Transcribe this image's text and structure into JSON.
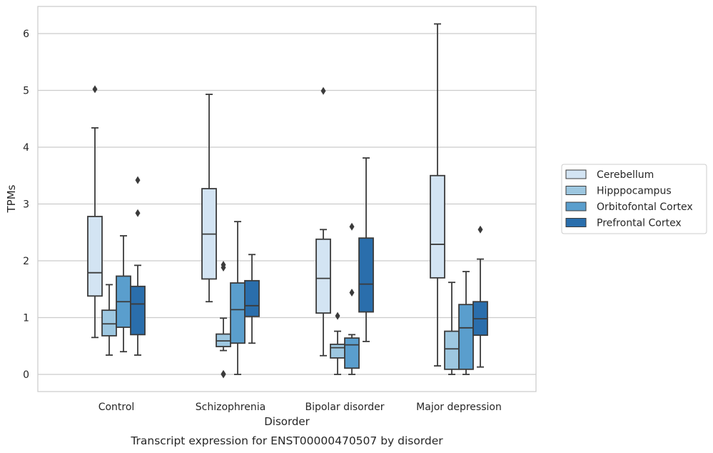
{
  "chart_data": {
    "type": "boxplot",
    "title": "",
    "caption": "Transcript expression for ENST00000470507 by disorder",
    "xlabel": "Disorder",
    "ylabel": "TPMs",
    "ylim": [
      -0.3,
      6.5
    ],
    "yticks": [
      0,
      1,
      2,
      3,
      4,
      5,
      6
    ],
    "grid": "horizontal",
    "legend_position": "right",
    "categories": [
      "Control",
      "Schizophrenia",
      "Bipolar disorder",
      "Major depression"
    ],
    "series": [
      {
        "name": "Cerebellum",
        "color": "#d3e4f3",
        "boxes": [
          {
            "whislo": 0.65,
            "q1": 1.38,
            "med": 1.79,
            "q3": 2.78,
            "whishi": 4.34,
            "fliers": [
              5.02
            ]
          },
          {
            "whislo": 1.28,
            "q1": 1.68,
            "med": 2.47,
            "q3": 3.27,
            "whishi": 4.93,
            "fliers": []
          },
          {
            "whislo": 0.33,
            "q1": 1.08,
            "med": 1.69,
            "q3": 2.38,
            "whishi": 2.55,
            "fliers": [
              4.99
            ]
          },
          {
            "whislo": 0.15,
            "q1": 1.7,
            "med": 2.29,
            "q3": 3.5,
            "whishi": 6.17,
            "fliers": []
          }
        ]
      },
      {
        "name": "Hipppocampus",
        "color": "#9dc7e0",
        "boxes": [
          {
            "whislo": 0.34,
            "q1": 0.68,
            "med": 0.89,
            "q3": 1.13,
            "whishi": 1.58,
            "fliers": []
          },
          {
            "whislo": 0.42,
            "q1": 0.49,
            "med": 0.59,
            "q3": 0.71,
            "whishi": 0.99,
            "fliers": [
              1.88,
              1.93,
              0.0,
              0.01
            ]
          },
          {
            "whislo": 0.0,
            "q1": 0.29,
            "med": 0.47,
            "q3": 0.53,
            "whishi": 0.76,
            "fliers": [
              1.03
            ]
          },
          {
            "whislo": 0.0,
            "q1": 0.09,
            "med": 0.45,
            "q3": 0.76,
            "whishi": 1.62,
            "fliers": []
          }
        ]
      },
      {
        "name": "Orbitofontal Cortex",
        "color": "#5a9ecd",
        "boxes": [
          {
            "whislo": 0.4,
            "q1": 0.83,
            "med": 1.28,
            "q3": 1.73,
            "whishi": 2.44,
            "fliers": []
          },
          {
            "whislo": 0.0,
            "q1": 0.55,
            "med": 1.14,
            "q3": 1.61,
            "whishi": 2.69,
            "fliers": []
          },
          {
            "whislo": 0.0,
            "q1": 0.11,
            "med": 0.52,
            "q3": 0.64,
            "whishi": 0.7,
            "fliers": [
              1.44,
              2.6
            ]
          },
          {
            "whislo": 0.0,
            "q1": 0.09,
            "med": 0.82,
            "q3": 1.23,
            "whishi": 1.81,
            "fliers": []
          }
        ]
      },
      {
        "name": "Prefrontal Cortex",
        "color": "#2a6eac",
        "boxes": [
          {
            "whislo": 0.34,
            "q1": 0.7,
            "med": 1.24,
            "q3": 1.55,
            "whishi": 1.92,
            "fliers": [
              2.84,
              3.42
            ]
          },
          {
            "whislo": 0.55,
            "q1": 1.02,
            "med": 1.21,
            "q3": 1.65,
            "whishi": 2.11,
            "fliers": []
          },
          {
            "whislo": 0.58,
            "q1": 1.1,
            "med": 1.59,
            "q3": 2.4,
            "whishi": 3.81,
            "fliers": []
          },
          {
            "whislo": 0.13,
            "q1": 0.69,
            "med": 0.98,
            "q3": 1.28,
            "whishi": 2.03,
            "fliers": [
              2.55
            ]
          }
        ]
      }
    ]
  },
  "colors": {
    "box_edge": "#3b3b3b",
    "grid": "#cccccc",
    "frame": "#cccccc"
  }
}
